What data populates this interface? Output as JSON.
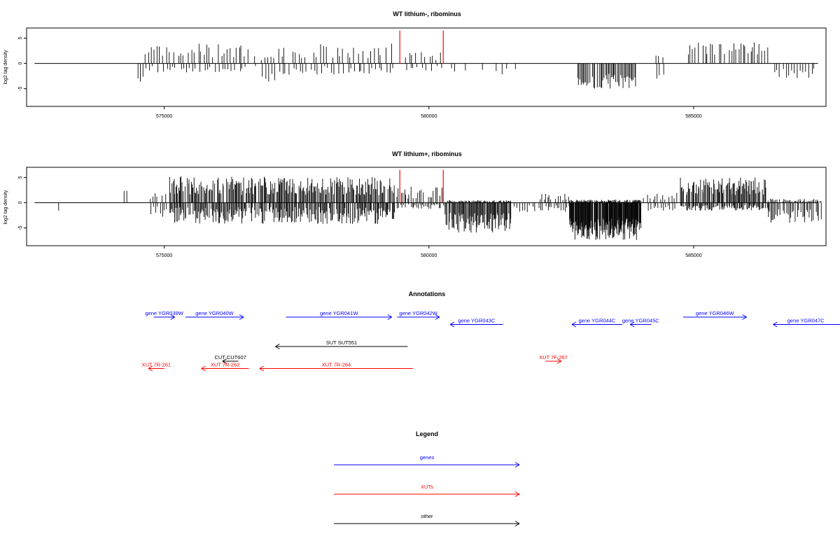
{
  "chart_data": [
    {
      "type": "bar",
      "title": "WT lithium-, ribominus",
      "ylabel": "log2 tag density",
      "xlim": [
        572400,
        587500
      ],
      "ylim": [
        -8.5,
        7
      ],
      "xticks": [
        575000,
        580000,
        585000
      ],
      "yticks": [
        -5,
        0,
        5
      ],
      "markers": {
        "color": "#ff0000",
        "x": [
          579450,
          580270
        ],
        "y_top": 6.5
      },
      "seed": 11,
      "segments": [
        {
          "x_from": 574500,
          "x_to": 574600,
          "step": 50,
          "pos": [
            0,
            0
          ],
          "neg": [
            2.5,
            3.8
          ]
        },
        {
          "x_from": 574650,
          "x_to": 576700,
          "step": 55,
          "pos": [
            1.0,
            4.0
          ],
          "neg": [
            0.5,
            1.8
          ]
        },
        {
          "x_from": 576850,
          "x_to": 577100,
          "step": 60,
          "pos": [
            0.5,
            1.5
          ],
          "neg": [
            2.0,
            4.2
          ]
        },
        {
          "x_from": 577150,
          "x_to": 579350,
          "step": 65,
          "pos": [
            1.0,
            4.0
          ],
          "neg": [
            0.4,
            2.2
          ]
        },
        {
          "x_from": 579550,
          "x_to": 580250,
          "step": 75,
          "pos": [
            0.6,
            2.4
          ],
          "neg": [
            0.5,
            1.5
          ]
        },
        {
          "x_from": 580350,
          "x_to": 581600,
          "step": 110,
          "pos": [
            0,
            0
          ],
          "neg": [
            0.6,
            2.6
          ]
        },
        {
          "x_from": 582800,
          "x_to": 583900,
          "step": 22,
          "pos": [
            0,
            0
          ],
          "neg": [
            2.0,
            5.0
          ]
        },
        {
          "x_from": 584300,
          "x_to": 584400,
          "step": 50,
          "pos": [
            0.5,
            2.0
          ],
          "neg": [
            2.0,
            3.0
          ]
        },
        {
          "x_from": 584900,
          "x_to": 586400,
          "step": 45,
          "pos": [
            1.5,
            4.2
          ],
          "neg": [
            0,
            0
          ]
        },
        {
          "x_from": 586500,
          "x_to": 587300,
          "step": 55,
          "pos": [
            0,
            0
          ],
          "neg": [
            0.8,
            3.2
          ]
        }
      ]
    },
    {
      "type": "bar",
      "title": "WT lithium+, ribominus",
      "ylabel": "log2 tag density",
      "xlim": [
        572400,
        587500
      ],
      "ylim": [
        -8.5,
        7
      ],
      "xticks": [
        575000,
        580000,
        585000
      ],
      "yticks": [
        -5,
        0,
        5
      ],
      "markers": {
        "color": "#ff0000",
        "x": [
          579450,
          580270
        ],
        "y_top": 6.5
      },
      "seed": 37,
      "segments": [
        {
          "x_from": 573000,
          "x_to": 573050,
          "step": 50,
          "pos": [
            0,
            0
          ],
          "neg": [
            1.5,
            2.0
          ]
        },
        {
          "x_from": 574250,
          "x_to": 574300,
          "step": 50,
          "pos": [
            2.0,
            2.6
          ],
          "neg": [
            0,
            0
          ]
        },
        {
          "x_from": 574750,
          "x_to": 575050,
          "step": 40,
          "pos": [
            0.6,
            2.0
          ],
          "neg": [
            0.6,
            2.8
          ]
        },
        {
          "x_from": 575100,
          "x_to": 579350,
          "step": 17,
          "pos": [
            1.5,
            5.2
          ],
          "neg": [
            0.8,
            4.2
          ]
        },
        {
          "x_from": 579400,
          "x_to": 580300,
          "step": 28,
          "pos": [
            0.8,
            3.2
          ],
          "neg": [
            0.3,
            1.2
          ]
        },
        {
          "x_from": 580300,
          "x_to": 581550,
          "step": 14,
          "pos": [
            0,
            0.5
          ],
          "neg": [
            2.0,
            6.0
          ]
        },
        {
          "x_from": 581600,
          "x_to": 582050,
          "step": 50,
          "pos": [
            0,
            0
          ],
          "neg": [
            0.5,
            2.0
          ]
        },
        {
          "x_from": 582100,
          "x_to": 582650,
          "step": 35,
          "pos": [
            0.5,
            1.8
          ],
          "neg": [
            0.5,
            1.8
          ]
        },
        {
          "x_from": 582650,
          "x_to": 584000,
          "step": 9,
          "pos": [
            0,
            0.6
          ],
          "neg": [
            3.0,
            7.4
          ]
        },
        {
          "x_from": 584050,
          "x_to": 584700,
          "step": 45,
          "pos": [
            0.5,
            2.0
          ],
          "neg": [
            0.5,
            1.6
          ]
        },
        {
          "x_from": 584750,
          "x_to": 586400,
          "step": 16,
          "pos": [
            1.5,
            5.0
          ],
          "neg": [
            0.5,
            1.6
          ]
        },
        {
          "x_from": 586400,
          "x_to": 587400,
          "step": 25,
          "pos": [
            0.2,
            0.8
          ],
          "neg": [
            1.0,
            4.0
          ]
        }
      ]
    }
  ],
  "annotations": {
    "title": "Annotations",
    "colors": {
      "genes": "#0000ff",
      "XUTs": "#ff0000",
      "other": "#000000"
    },
    "features": [
      {
        "label": "gene YGR039W",
        "category": "genes",
        "strand": "+",
        "start": 574800,
        "end": 575200,
        "row": 0
      },
      {
        "label": "gene YGR040W",
        "category": "genes",
        "strand": "+",
        "start": 575400,
        "end": 576500,
        "row": 0
      },
      {
        "label": "gene YGR041W",
        "category": "genes",
        "strand": "+",
        "start": 577300,
        "end": 579300,
        "row": 0
      },
      {
        "label": "gene YGR042W",
        "category": "genes",
        "strand": "+",
        "start": 579400,
        "end": 580200,
        "row": 0
      },
      {
        "label": "gene YGR043C",
        "category": "genes",
        "strand": "-",
        "start": 580400,
        "end": 581400,
        "row": 1
      },
      {
        "label": "gene YGR044C",
        "category": "genes",
        "strand": "-",
        "start": 582700,
        "end": 583650,
        "row": 1
      },
      {
        "label": "gene YGR045C",
        "category": "genes",
        "strand": "-",
        "start": 583800,
        "end": 584200,
        "row": 1
      },
      {
        "label": "gene YGR046W",
        "category": "genes",
        "strand": "+",
        "start": 584800,
        "end": 586000,
        "row": 0
      },
      {
        "label": "gene YGR047C",
        "category": "genes",
        "strand": "-",
        "start": 586500,
        "end": 588200,
        "row": 1
      },
      {
        "label": "SUT SUT551",
        "category": "other",
        "strand": "-",
        "start": 577100,
        "end": 579600,
        "row": 4
      },
      {
        "label": "CUT CUT607",
        "category": "other",
        "strand": "-",
        "start": 576100,
        "end": 576400,
        "row": 6
      },
      {
        "label": "XUT 7R-261",
        "category": "XUTs",
        "strand": "-",
        "start": 574700,
        "end": 575000,
        "row": 7
      },
      {
        "label": "XUT 7R-262",
        "category": "XUTs",
        "strand": "-",
        "start": 575700,
        "end": 576600,
        "row": 7
      },
      {
        "label": "XUT 7R-264",
        "category": "XUTs",
        "strand": "-",
        "start": 576800,
        "end": 579700,
        "row": 7
      },
      {
        "label": "XUT 7F-267",
        "category": "XUTs",
        "strand": "+",
        "start": 582200,
        "end": 582500,
        "row": 6
      }
    ]
  },
  "legend": {
    "title": "Legend",
    "items": [
      {
        "label": "genes",
        "color": "#0000ff"
      },
      {
        "label": "XUTs",
        "color": "#ff0000"
      },
      {
        "label": "other",
        "color": "#000000"
      }
    ]
  }
}
